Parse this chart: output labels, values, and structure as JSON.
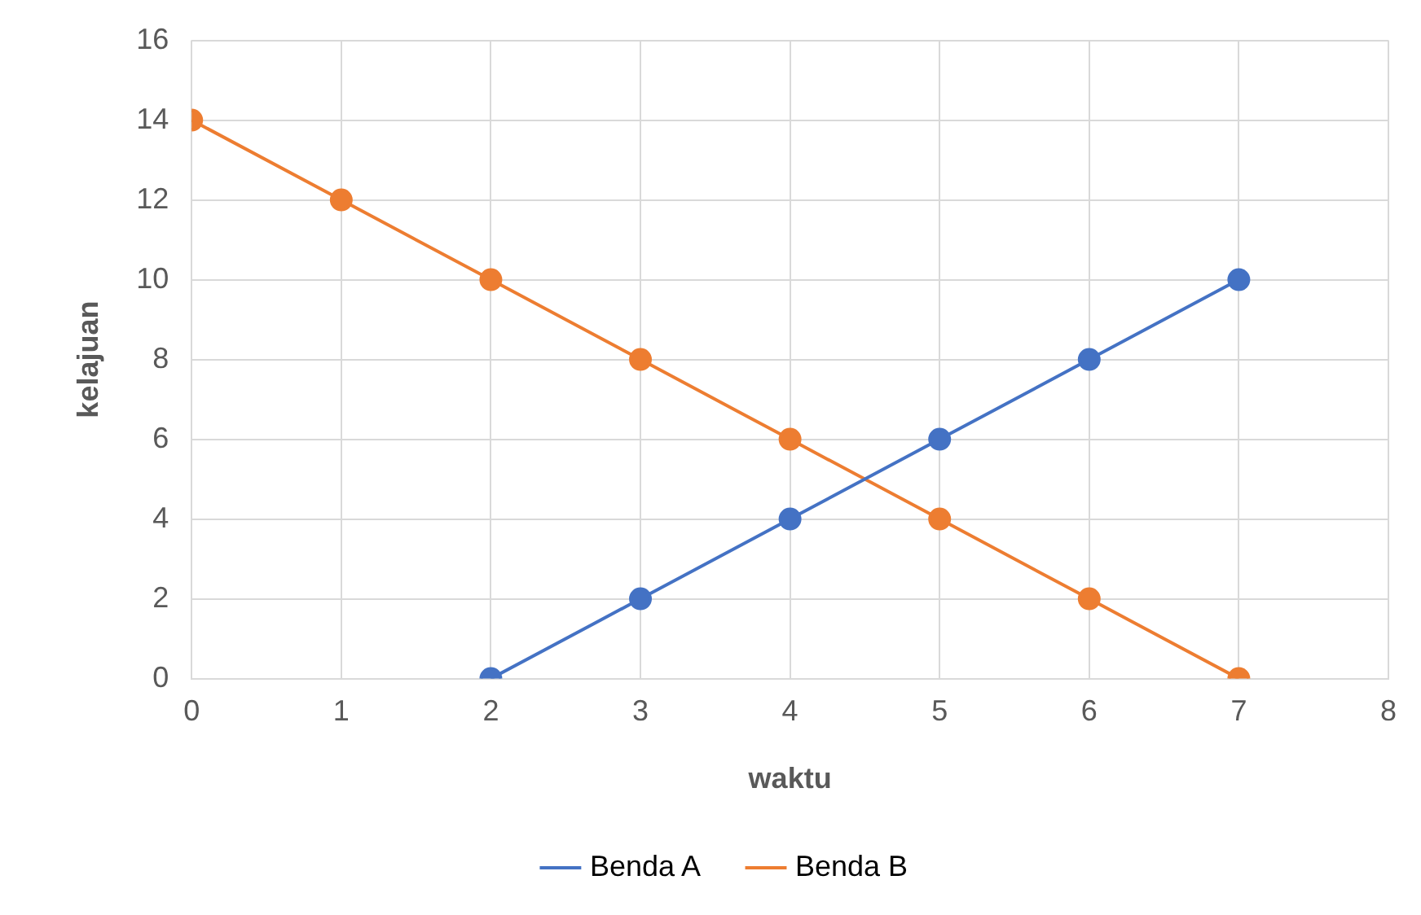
{
  "chart_data": {
    "type": "line",
    "xlabel": "waktu",
    "ylabel": "kelajuan",
    "xlim": [
      0,
      8
    ],
    "xticks": [
      0,
      1,
      2,
      3,
      4,
      5,
      6,
      7,
      8
    ],
    "ylim": [
      0,
      16
    ],
    "yticks": [
      0,
      2,
      4,
      6,
      8,
      10,
      12,
      14,
      16
    ],
    "series": [
      {
        "name": "Benda A",
        "color": "#4472c4",
        "x": [
          2,
          3,
          4,
          5,
          6,
          7
        ],
        "values": [
          0,
          2,
          4,
          6,
          8,
          10
        ]
      },
      {
        "name": "Benda B",
        "color": "#ed7d31",
        "x": [
          0,
          1,
          2,
          3,
          4,
          5,
          6,
          7
        ],
        "values": [
          14,
          12,
          10,
          8,
          6,
          4,
          2,
          0
        ]
      }
    ],
    "grid": true,
    "legend": "bottom",
    "marker": "circle",
    "line_style": "solid"
  }
}
